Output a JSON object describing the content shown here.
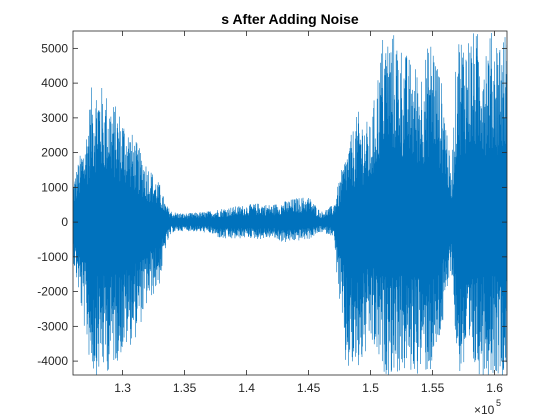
{
  "chart_data": {
    "type": "line",
    "title": "s After Adding Noise",
    "xlabel": "",
    "ylabel": "",
    "x_exponent_base": "×10",
    "x_exponent_power": "5",
    "xlim": [
      1.26,
      1.61
    ],
    "ylim": [
      -4400,
      5500
    ],
    "x_ticks": [
      1.3,
      1.35,
      1.4,
      1.45,
      1.5,
      1.55,
      1.6
    ],
    "x_tick_labels": [
      "1.3",
      "1.35",
      "1.4",
      "1.45",
      "1.5",
      "1.55",
      "1.6"
    ],
    "y_ticks": [
      -4000,
      -3000,
      -2000,
      -1000,
      0,
      1000,
      2000,
      3000,
      4000,
      5000
    ],
    "y_tick_labels": [
      "-4000",
      "-3000",
      "-2000",
      "-1000",
      "0",
      "1000",
      "2000",
      "3000",
      "4000",
      "5000"
    ],
    "grid": false,
    "legend": "none",
    "line_color": "#0072BD",
    "series": [
      {
        "envelope_upper": [
          [
            1.26,
            1200
          ],
          [
            1.27,
            2500
          ],
          [
            1.275,
            3900
          ],
          [
            1.28,
            4100
          ],
          [
            1.29,
            3600
          ],
          [
            1.3,
            3100
          ],
          [
            1.31,
            2400
          ],
          [
            1.32,
            1700
          ],
          [
            1.33,
            1100
          ],
          [
            1.335,
            500
          ],
          [
            1.34,
            300
          ],
          [
            1.35,
            250
          ],
          [
            1.36,
            280
          ],
          [
            1.37,
            320
          ],
          [
            1.38,
            400
          ],
          [
            1.39,
            450
          ],
          [
            1.4,
            500
          ],
          [
            1.41,
            550
          ],
          [
            1.42,
            500
          ],
          [
            1.43,
            600
          ],
          [
            1.44,
            700
          ],
          [
            1.45,
            750
          ],
          [
            1.46,
            300
          ],
          [
            1.47,
            500
          ],
          [
            1.48,
            2000
          ],
          [
            1.49,
            3200
          ],
          [
            1.5,
            2800
          ],
          [
            1.51,
            5500
          ],
          [
            1.52,
            5500
          ],
          [
            1.53,
            4800
          ],
          [
            1.54,
            4400
          ],
          [
            1.55,
            5500
          ],
          [
            1.56,
            3500
          ],
          [
            1.565,
            1300
          ],
          [
            1.57,
            5500
          ],
          [
            1.6,
            5500
          ],
          [
            1.61,
            5500
          ]
        ],
        "envelope_lower": [
          [
            1.26,
            -1100
          ],
          [
            1.27,
            -3300
          ],
          [
            1.275,
            -4400
          ],
          [
            1.28,
            -4400
          ],
          [
            1.29,
            -4300
          ],
          [
            1.3,
            -3800
          ],
          [
            1.31,
            -3400
          ],
          [
            1.32,
            -2400
          ],
          [
            1.33,
            -1800
          ],
          [
            1.335,
            -700
          ],
          [
            1.34,
            -300
          ],
          [
            1.35,
            -250
          ],
          [
            1.36,
            -280
          ],
          [
            1.37,
            -320
          ],
          [
            1.38,
            -500
          ],
          [
            1.39,
            -500
          ],
          [
            1.4,
            -450
          ],
          [
            1.41,
            -500
          ],
          [
            1.42,
            -450
          ],
          [
            1.43,
            -600
          ],
          [
            1.44,
            -550
          ],
          [
            1.45,
            -500
          ],
          [
            1.46,
            -300
          ],
          [
            1.47,
            -400
          ],
          [
            1.48,
            -4400
          ],
          [
            1.49,
            -4400
          ],
          [
            1.5,
            -3600
          ],
          [
            1.51,
            -4400
          ],
          [
            1.52,
            -4400
          ],
          [
            1.53,
            -4400
          ],
          [
            1.54,
            -4400
          ],
          [
            1.55,
            -4400
          ],
          [
            1.56,
            -2800
          ],
          [
            1.565,
            -1200
          ],
          [
            1.57,
            -4400
          ],
          [
            1.6,
            -4400
          ],
          [
            1.61,
            -4400
          ]
        ]
      }
    ]
  }
}
